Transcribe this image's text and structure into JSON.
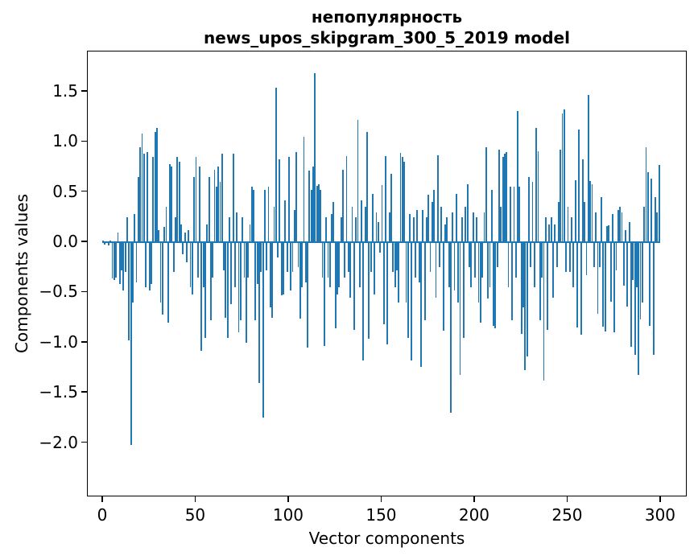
{
  "chart": {
    "title_line1": "непопулярность",
    "title_line2": "news_upos_skipgram_300_5_2019 model",
    "xlabel": "Vector components",
    "ylabel": "Components values"
  },
  "chart_data": {
    "type": "bar",
    "title": "непопулярность\nnews_upos_skipgram_300_5_2019 model",
    "xlabel": "Vector components",
    "ylabel": "Components values",
    "bar_color": "#1f77b4",
    "n_components": 300,
    "xlim": [
      -8.2,
      314.3
    ],
    "ylim": [
      -2.54,
      1.9
    ],
    "grid": false,
    "legend": null,
    "x_tick_values": [
      0,
      50,
      100,
      150,
      200,
      250,
      300
    ],
    "x_tick_labels": [
      "0",
      "50",
      "100",
      "150",
      "200",
      "250",
      "300"
    ],
    "y_tick_values": [
      1.5,
      1.0,
      0.5,
      0.0,
      -0.5,
      -1.0,
      -1.5,
      -2.0
    ],
    "y_tick_labels": [
      "1.5",
      "1.0",
      "0.5",
      "0.0",
      "−0.5",
      "−1.0",
      "−1.5",
      "−2.0"
    ],
    "values": [
      0.02,
      -0.02,
      0.01,
      -0.03,
      0.02,
      -0.36,
      -0.38,
      -0.35,
      0.1,
      -0.42,
      -0.28,
      -0.48,
      -0.3,
      0.25,
      -0.98,
      -2.02,
      -0.6,
      0.28,
      -0.4,
      0.65,
      0.95,
      1.08,
      0.88,
      -0.45,
      0.9,
      -0.48,
      -0.42,
      0.85,
      1.1,
      1.14,
      0.12,
      -0.6,
      -0.72,
      0.15,
      0.35,
      -0.8,
      0.78,
      0.75,
      -0.3,
      0.25,
      0.85,
      0.8,
      0.18,
      -0.12,
      0.1,
      -0.2,
      0.12,
      -0.45,
      -0.52,
      0.65,
      0.85,
      -0.35,
      0.75,
      -1.08,
      -0.45,
      -0.95,
      0.18,
      0.65,
      -0.78,
      -0.35,
      0.72,
      0.55,
      0.75,
      0.6,
      0.88,
      -0.28,
      -0.75,
      -0.95,
      0.25,
      -0.62,
      0.88,
      -0.45,
      0.3,
      -0.9,
      -0.78,
      0.25,
      -0.35,
      -1.0,
      -0.35,
      0.18,
      0.55,
      0.52,
      -0.78,
      -0.42,
      -1.4,
      -0.3,
      -1.75,
      0.52,
      -0.28,
      0.55,
      -0.65,
      -0.75,
      0.35,
      1.54,
      -0.15,
      0.83,
      -0.53,
      -0.52,
      0.42,
      -0.3,
      0.85,
      -0.48,
      -0.3,
      0.32,
      0.9,
      -0.25,
      -0.76,
      -0.45,
      1.05,
      -0.4,
      -1.05,
      0.71,
      0.52,
      0.75,
      1.68,
      0.56,
      0.58,
      0.52,
      -0.35,
      -1.03,
      0.25,
      -0.35,
      -0.45,
      0.28,
      0.4,
      -0.86,
      -0.52,
      -0.45,
      0.25,
      0.72,
      -0.35,
      0.86,
      -0.3,
      -0.55,
      0.35,
      -0.87,
      0.25,
      1.22,
      -0.45,
      0.42,
      -1.18,
      0.35,
      1.1,
      -0.96,
      -0.3,
      0.48,
      -0.52,
      0.3,
      0.2,
      -0.1,
      0.57,
      -0.82,
      0.86,
      -1.02,
      0.3,
      0.68,
      -0.3,
      -0.45,
      -0.28,
      -0.6,
      0.89,
      0.85,
      0.8,
      -0.6,
      -0.95,
      0.28,
      -1.18,
      0.25,
      -0.35,
      0.32,
      -0.4,
      -1.24,
      0.32,
      -0.78,
      0.25,
      0.47,
      -0.3,
      0.4,
      0.52,
      -0.55,
      0.87,
      -0.25,
      0.35,
      -0.88,
      0.18,
      0.25,
      -0.45,
      -1.7,
      0.3,
      -0.48,
      0.48,
      -0.6,
      -1.32,
      0.25,
      -0.95,
      0.35,
      0.58,
      -0.25,
      -0.45,
      0.3,
      -0.35,
      0.25,
      -0.6,
      -0.8,
      -0.35,
      0.3,
      0.95,
      -0.56,
      -0.45,
      0.52,
      -0.83,
      -0.86,
      -0.25,
      0.92,
      0.35,
      0.85,
      0.88,
      0.9,
      -0.45,
      0.55,
      -0.78,
      0.55,
      -0.35,
      1.31,
      0.55,
      -0.91,
      -0.65,
      -1.27,
      -1.14,
      0.65,
      -0.25,
      0.6,
      -0.45,
      1.14,
      0.91,
      -0.78,
      -0.35,
      -1.38,
      0.25,
      -0.87,
      0.18,
      0.25,
      -0.55,
      0.18,
      -0.25,
      0.4,
      0.92,
      1.28,
      1.32,
      -0.3,
      0.35,
      -0.3,
      0.25,
      -0.45,
      0.62,
      -0.85,
      1.12,
      -0.92,
      0.83,
      0.4,
      -0.33,
      1.47,
      0.61,
      0.58,
      -0.25,
      0.3,
      -0.71,
      -0.25,
      0.45,
      -0.84,
      -0.89,
      0.16,
      0.17,
      -0.59,
      0.28,
      -0.9,
      -0.28,
      0.32,
      0.35,
      0.3,
      -0.43,
      0.12,
      -0.64,
      0.2,
      -1.04,
      -0.38,
      -1.12,
      -0.45,
      -1.32,
      -0.77,
      -0.6,
      0.35,
      0.95,
      0.7,
      -0.83,
      0.63,
      -1.12,
      0.45,
      0.3,
      0.77
    ]
  }
}
